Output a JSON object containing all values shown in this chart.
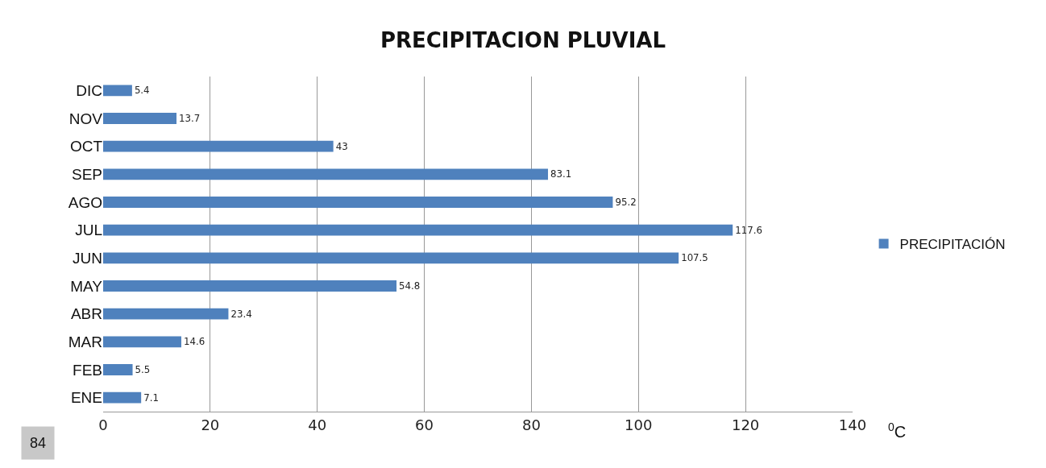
{
  "chart_data": {
    "type": "bar",
    "orientation": "horizontal",
    "title": "PRECIPITACION PLUVIAL",
    "xlabel": "$^{0}$C",
    "categories": [
      "DIC",
      "NOV",
      "OCT",
      "SEP",
      "AGO",
      "JUL",
      "JUN",
      "MAY",
      "ABR",
      "MAR",
      "FEB",
      "ENE"
    ],
    "series": [
      {
        "name": "PRECIPITACIÓN",
        "color": "#4f81bd",
        "values": [
          5.4,
          13.7,
          43,
          83.1,
          95.2,
          117.6,
          107.5,
          54.8,
          23.4,
          14.6,
          5.5,
          7.1
        ]
      }
    ],
    "xlim": [
      0,
      140
    ],
    "xticks": [
      0,
      20,
      40,
      60,
      80,
      100,
      120,
      140
    ],
    "grid": "x",
    "legend": "right",
    "data_labels": true,
    "annotations": [
      "84"
    ]
  }
}
